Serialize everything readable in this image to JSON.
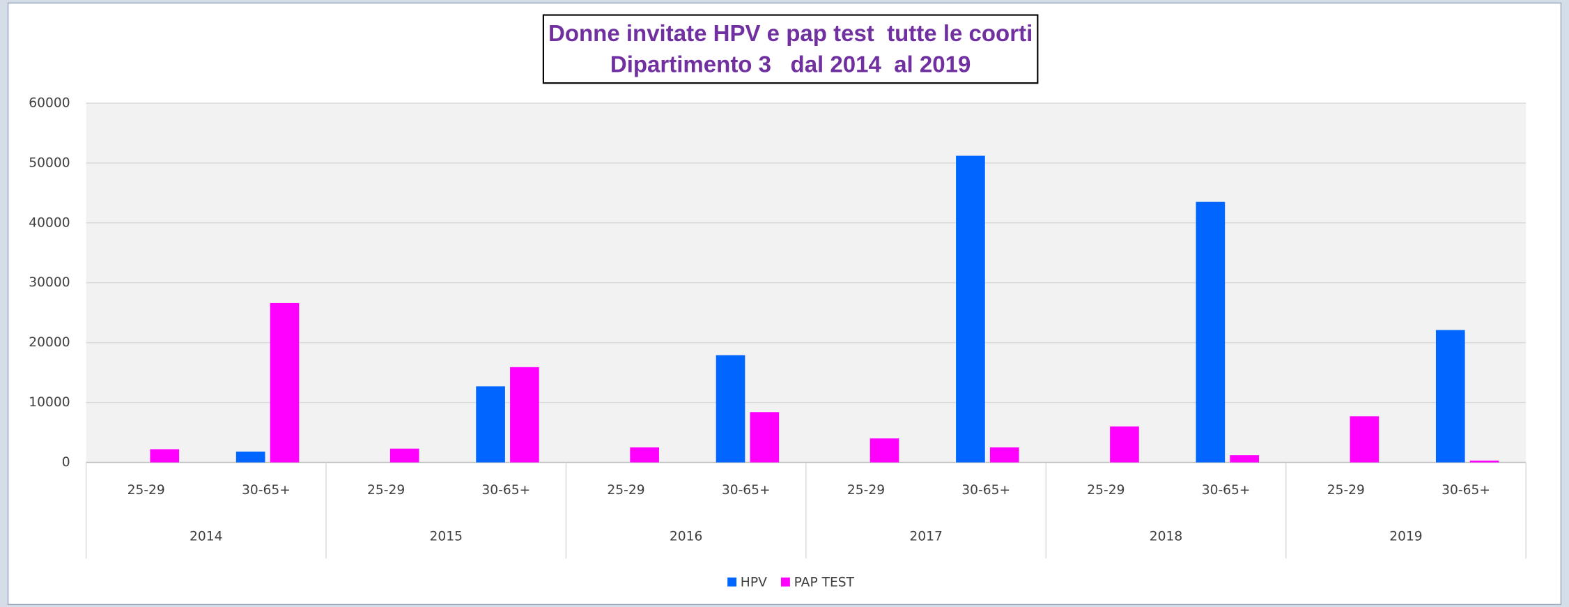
{
  "chart_data": {
    "type": "bar",
    "title": "Donne invitate HPV e pap test  tutte le coorti",
    "subtitle": "Dipartimento 3   dal 2014  al 2019",
    "groups": [
      "2014",
      "2015",
      "2016",
      "2017",
      "2018",
      "2019"
    ],
    "categories": [
      "25-29",
      "30-65+",
      "25-29",
      "30-65+",
      "25-29",
      "30-65+",
      "25-29",
      "30-65+",
      "25-29",
      "30-65+",
      "25-29",
      "30-65+"
    ],
    "series": [
      {
        "name": "HPV",
        "color": "#0066ff",
        "values": [
          0,
          1800,
          0,
          12700,
          0,
          17900,
          0,
          51200,
          0,
          43500,
          0,
          22100
        ]
      },
      {
        "name": "PAP TEST",
        "color": "#ff00ff",
        "values": [
          2200,
          26600,
          2300,
          15900,
          2500,
          8400,
          4000,
          2500,
          6000,
          1200,
          7700,
          300
        ]
      }
    ],
    "ylim": [
      0,
      60000
    ],
    "yticks": [
      0,
      10000,
      20000,
      30000,
      40000,
      50000,
      60000
    ],
    "grid": true,
    "legend": "bottom"
  }
}
